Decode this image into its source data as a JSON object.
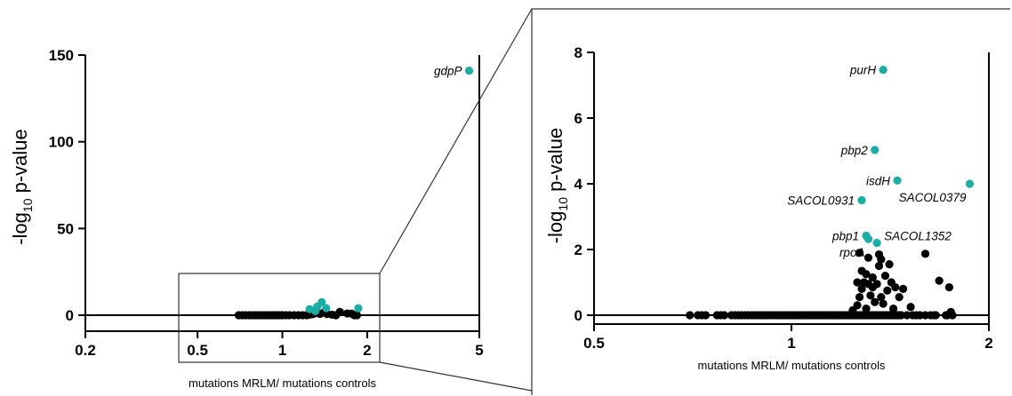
{
  "colors": {
    "highlight": "#1aaea4",
    "point": "#000000",
    "axis": "#000000",
    "zoom_box": "#333333"
  },
  "chart_data": [
    {
      "type": "scatter",
      "panel": "overview",
      "xscale": "log2",
      "xlim": [
        0.2,
        5
      ],
      "ylim": [
        0,
        150
      ],
      "xticks": [
        0.2,
        0.5,
        1,
        2,
        5
      ],
      "xtick_labels": [
        "0.2",
        "0.5",
        "1",
        "2",
        "5"
      ],
      "yticks": [
        0,
        50,
        100,
        150
      ],
      "ytick_labels": [
        "0",
        "50",
        "100",
        "150"
      ],
      "xlabel": "mutations MRLM/ mutations controls",
      "ylabel_main": "-log",
      "ylabel_sub": "10",
      "ylabel_tail": " p-value",
      "series": [
        {
          "style": "highlight",
          "points": [
            [
              4.6,
              141
            ],
            [
              1.38,
              7.5
            ],
            [
              1.33,
              5.0
            ],
            [
              1.43,
              4.1
            ],
            [
              1.86,
              4.0
            ],
            [
              1.25,
              3.5
            ],
            [
              1.31,
              2.4
            ]
          ]
        },
        {
          "style": "black",
          "points": [
            [
              0.7,
              0
            ],
            [
              0.72,
              0
            ],
            [
              0.74,
              0
            ],
            [
              0.76,
              0
            ],
            [
              0.78,
              0
            ],
            [
              0.8,
              0
            ],
            [
              0.82,
              0
            ],
            [
              0.84,
              0
            ],
            [
              0.86,
              0
            ],
            [
              0.88,
              0
            ],
            [
              0.9,
              0
            ],
            [
              0.92,
              0
            ],
            [
              0.94,
              0
            ],
            [
              0.96,
              0
            ],
            [
              0.98,
              0
            ],
            [
              1.0,
              0
            ],
            [
              1.03,
              0
            ],
            [
              1.06,
              0
            ],
            [
              1.1,
              0
            ],
            [
              1.14,
              0
            ],
            [
              1.18,
              0
            ],
            [
              1.22,
              0
            ],
            [
              1.25,
              0.3
            ],
            [
              1.28,
              0.6
            ],
            [
              1.3,
              1.0
            ],
            [
              1.33,
              1.4
            ],
            [
              1.36,
              0.8
            ],
            [
              1.4,
              1.5
            ],
            [
              1.44,
              0.7
            ],
            [
              1.5,
              0.3
            ],
            [
              1.55,
              0
            ],
            [
              1.6,
              1.9
            ],
            [
              1.7,
              1.0
            ],
            [
              1.76,
              0.9
            ],
            [
              1.8,
              0
            ],
            [
              1.84,
              0
            ]
          ]
        }
      ],
      "labels": [
        {
          "text": "gdpP",
          "x": 4.6,
          "y": 141,
          "anchor": "left"
        }
      ]
    },
    {
      "type": "scatter",
      "panel": "zoom",
      "xscale": "log2",
      "xlim": [
        0.5,
        2
      ],
      "ylim": [
        0,
        8
      ],
      "xticks": [
        0.5,
        1,
        2
      ],
      "xtick_labels": [
        "0.5",
        "1",
        "2"
      ],
      "yticks": [
        0,
        2,
        4,
        6,
        8
      ],
      "ytick_labels": [
        "0",
        "2",
        "4",
        "6",
        "8"
      ],
      "xlabel": "mutations MRLM/ mutations controls",
      "ylabel_main": "-log",
      "ylabel_sub": "10",
      "ylabel_tail": " p-value",
      "series": [
        {
          "style": "highlight",
          "points": [
            [
              1.38,
              7.47
            ],
            [
              1.34,
              5.03
            ],
            [
              1.45,
              4.1
            ],
            [
              1.87,
              4.0
            ],
            [
              1.28,
              3.5
            ],
            [
              1.3,
              2.42
            ],
            [
              1.31,
              2.32
            ],
            [
              1.35,
              2.2
            ]
          ]
        },
        {
          "style": "black",
          "points": [
            [
              0.7,
              0
            ],
            [
              0.72,
              0
            ],
            [
              0.73,
              0
            ],
            [
              0.74,
              0
            ],
            [
              0.77,
              0
            ],
            [
              0.78,
              0
            ],
            [
              0.79,
              0
            ],
            [
              0.81,
              0
            ],
            [
              0.82,
              0
            ],
            [
              0.83,
              0
            ],
            [
              0.84,
              0
            ],
            [
              0.85,
              0
            ],
            [
              0.86,
              0
            ],
            [
              0.87,
              0
            ],
            [
              0.88,
              0
            ],
            [
              0.89,
              0
            ],
            [
              0.9,
              0
            ],
            [
              0.91,
              0
            ],
            [
              0.92,
              0
            ],
            [
              0.93,
              0
            ],
            [
              0.94,
              0
            ],
            [
              0.95,
              0
            ],
            [
              0.96,
              0
            ],
            [
              0.97,
              0
            ],
            [
              0.98,
              0
            ],
            [
              0.99,
              0
            ],
            [
              1.0,
              0
            ],
            [
              1.01,
              0
            ],
            [
              1.02,
              0
            ],
            [
              1.03,
              0
            ],
            [
              1.04,
              0
            ],
            [
              1.05,
              0
            ],
            [
              1.06,
              0
            ],
            [
              1.07,
              0
            ],
            [
              1.08,
              0
            ],
            [
              1.09,
              0
            ],
            [
              1.1,
              0
            ],
            [
              1.11,
              0
            ],
            [
              1.12,
              0
            ],
            [
              1.13,
              0
            ],
            [
              1.14,
              0
            ],
            [
              1.15,
              0
            ],
            [
              1.16,
              0
            ],
            [
              1.17,
              0
            ],
            [
              1.18,
              0
            ],
            [
              1.19,
              0
            ],
            [
              1.2,
              0
            ],
            [
              1.21,
              0
            ],
            [
              1.22,
              0
            ],
            [
              1.23,
              0
            ],
            [
              1.24,
              0
            ],
            [
              1.25,
              0
            ],
            [
              1.26,
              0
            ],
            [
              1.27,
              0
            ],
            [
              1.28,
              0
            ],
            [
              1.29,
              0
            ],
            [
              1.3,
              0
            ],
            [
              1.31,
              0
            ],
            [
              1.32,
              0
            ],
            [
              1.33,
              0
            ],
            [
              1.34,
              0
            ],
            [
              1.35,
              0
            ],
            [
              1.36,
              0
            ],
            [
              1.37,
              0
            ],
            [
              1.38,
              0
            ],
            [
              1.39,
              0
            ],
            [
              1.4,
              0
            ],
            [
              1.41,
              0
            ],
            [
              1.42,
              0
            ],
            [
              1.43,
              0
            ],
            [
              1.44,
              0
            ],
            [
              1.45,
              0
            ],
            [
              1.46,
              0
            ],
            [
              1.47,
              0
            ],
            [
              1.5,
              0
            ],
            [
              1.53,
              0
            ],
            [
              1.55,
              0
            ],
            [
              1.57,
              0
            ],
            [
              1.6,
              0
            ],
            [
              1.63,
              0
            ],
            [
              1.66,
              0
            ],
            [
              1.72,
              0
            ],
            [
              1.76,
              0
            ],
            [
              1.24,
              0.15
            ],
            [
              1.26,
              0.3
            ],
            [
              1.27,
              0.55
            ],
            [
              1.28,
              0.8
            ],
            [
              1.29,
              1.0
            ],
            [
              1.3,
              1.25
            ],
            [
              1.31,
              0.95
            ],
            [
              1.32,
              0.6
            ],
            [
              1.33,
              1.15
            ],
            [
              1.34,
              0.4
            ],
            [
              1.36,
              1.5
            ],
            [
              1.37,
              1.7
            ],
            [
              1.38,
              0.35
            ],
            [
              1.39,
              1.2
            ],
            [
              1.4,
              0.75
            ],
            [
              1.42,
              1.0
            ],
            [
              1.44,
              0.85
            ],
            [
              1.46,
              0.55
            ],
            [
              1.48,
              0.8
            ],
            [
              1.52,
              0.25
            ],
            [
              1.26,
              1.0
            ],
            [
              1.28,
              1.35
            ],
            [
              1.3,
              0.2
            ],
            [
              1.33,
              0.85
            ],
            [
              1.35,
              0.95
            ],
            [
              1.37,
              0.55
            ],
            [
              1.41,
              1.55
            ],
            [
              1.43,
              0.2
            ],
            [
              1.27,
              1.9
            ],
            [
              1.31,
              1.75
            ],
            [
              1.36,
              1.85
            ],
            [
              1.6,
              1.87
            ],
            [
              1.68,
              1.05
            ],
            [
              1.74,
              0.85
            ],
            [
              1.75,
              0.1
            ],
            [
              1.73,
              0.0
            ],
            [
              1.65,
              0.0
            ]
          ]
        }
      ],
      "labels": [
        {
          "text": "purH",
          "x": 1.38,
          "y": 7.47,
          "anchor": "left"
        },
        {
          "text": "pbp2",
          "x": 1.34,
          "y": 5.03,
          "anchor": "left"
        },
        {
          "text": "isdH",
          "x": 1.45,
          "y": 4.1,
          "anchor": "left"
        },
        {
          "text": "SACOL0379",
          "x": 1.87,
          "y": 4.0,
          "anchor": "below-left"
        },
        {
          "text": "SACOL0931",
          "x": 1.28,
          "y": 3.5,
          "anchor": "left"
        },
        {
          "text": "pbp1",
          "x": 1.3,
          "y": 2.42,
          "anchor": "left"
        },
        {
          "text": "rpoA",
          "x": 1.31,
          "y": 2.32,
          "anchor": "below-left"
        },
        {
          "text": "SACOL1352",
          "x": 1.35,
          "y": 2.2,
          "anchor": "right"
        }
      ]
    }
  ]
}
